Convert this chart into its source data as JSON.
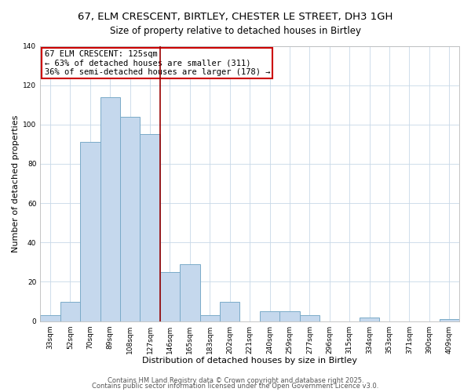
{
  "title1": "67, ELM CRESCENT, BIRTLEY, CHESTER LE STREET, DH3 1GH",
  "title2": "Size of property relative to detached houses in Birtley",
  "xlabel": "Distribution of detached houses by size in Birtley",
  "ylabel": "Number of detached properties",
  "categories": [
    "33sqm",
    "52sqm",
    "70sqm",
    "89sqm",
    "108sqm",
    "127sqm",
    "146sqm",
    "165sqm",
    "183sqm",
    "202sqm",
    "221sqm",
    "240sqm",
    "259sqm",
    "277sqm",
    "296sqm",
    "315sqm",
    "334sqm",
    "353sqm",
    "371sqm",
    "390sqm",
    "409sqm"
  ],
  "values": [
    3,
    10,
    91,
    114,
    104,
    95,
    25,
    29,
    3,
    10,
    0,
    5,
    5,
    3,
    0,
    0,
    2,
    0,
    0,
    0,
    1
  ],
  "bar_color": "#c5d8ed",
  "bar_edge_color": "#7aaac8",
  "bar_width": 1.0,
  "vline_x": 5.5,
  "vline_color": "#990000",
  "annotation_text": "67 ELM CRESCENT: 125sqm\n← 63% of detached houses are smaller (311)\n36% of semi-detached houses are larger (178) →",
  "ylim": [
    0,
    140
  ],
  "yticks": [
    0,
    20,
    40,
    60,
    80,
    100,
    120,
    140
  ],
  "footer1": "Contains HM Land Registry data © Crown copyright and database right 2025.",
  "footer2": "Contains public sector information licensed under the Open Government Licence v3.0.",
  "bg_color": "#ffffff",
  "grid_color": "#c8d8e8",
  "title1_fontsize": 9.5,
  "title2_fontsize": 8.5,
  "axis_label_fontsize": 8,
  "tick_fontsize": 6.5,
  "annotation_fontsize": 7.5,
  "footer_fontsize": 6
}
